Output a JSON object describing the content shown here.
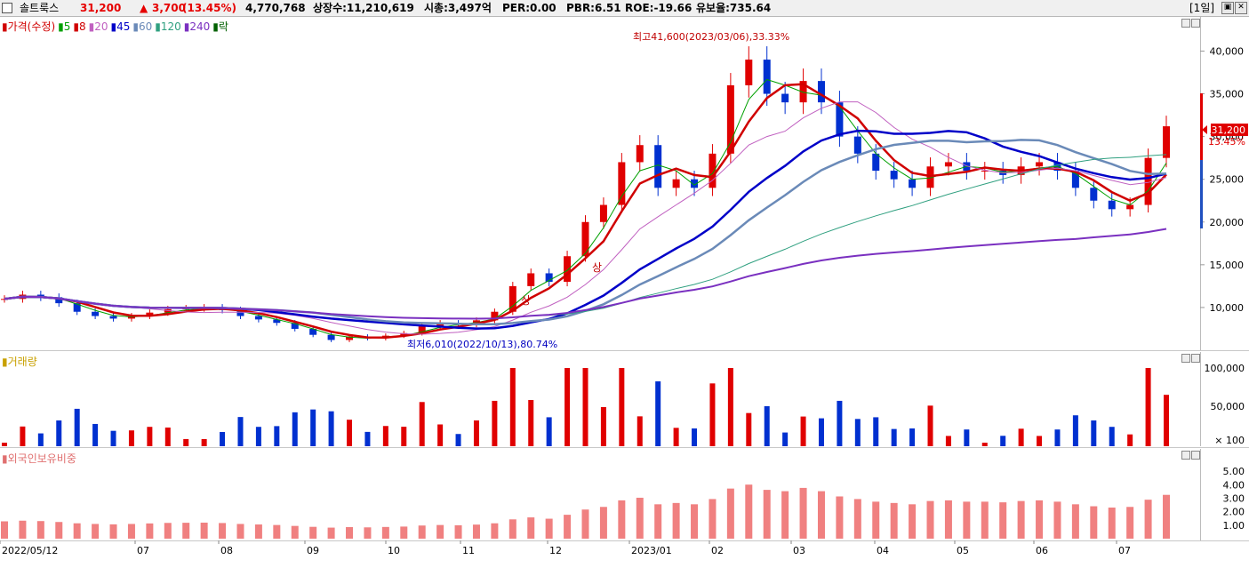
{
  "header": {
    "stock_name": "솔트룩스",
    "price": "31,200",
    "change_arrow": "▲",
    "change": "3,700",
    "change_pct": "(13.45%)",
    "volume": "4,770,768",
    "listed": "상장수:11,210,619",
    "market_cap": "시총:3,497억",
    "per": "PER:0.00",
    "pbr": "PBR:6.51",
    "roe": "ROE:-19.66",
    "reserve": "유보율:735.64",
    "period_button": "[1일]",
    "btn_restore": "▣",
    "btn_close": "✕"
  },
  "price_panel": {
    "legend": [
      {
        "label": "가격(수정)",
        "color": "#d00000"
      },
      {
        "label": "5",
        "color": "#00a000"
      },
      {
        "label": "8",
        "color": "#d00000"
      },
      {
        "label": "20",
        "color": "#c060c0"
      },
      {
        "label": "45",
        "color": "#0000c8"
      },
      {
        "label": "60",
        "color": "#6a8ab8"
      },
      {
        "label": "120",
        "color": "#30a080"
      },
      {
        "label": "240",
        "color": "#7a30c0"
      },
      {
        "label": "락",
        "color": "#006000"
      }
    ],
    "y_ticks": [
      "40,000",
      "35,000",
      "30,000",
      "25,000",
      "20,000",
      "15,000",
      "10,000"
    ],
    "high_annotation": "최고41,600(2023/03/06),33.33%",
    "low_annotation": "최저6,010(2022/10/13),80.74%",
    "limit_up_marks": [
      "상",
      "상"
    ],
    "price_tag": "31,200",
    "pct_tag": "13.45%"
  },
  "volume_panel": {
    "title": "거래량",
    "y_ticks": [
      "100,000",
      "50,000",
      "× 100"
    ]
  },
  "foreign_panel": {
    "title": "외국인보유비중",
    "y_ticks": [
      "5.00",
      "4.00",
      "3.00",
      "2.00",
      "1.00"
    ]
  },
  "x_axis": {
    "labels": [
      "2022/05/12",
      "07",
      "08",
      "09",
      "10",
      "11",
      "12",
      "2023/01",
      "02",
      "03",
      "04",
      "05",
      "06",
      "07"
    ]
  },
  "chart_data": {
    "type": "candlestick",
    "price_series_closes": [
      11000,
      11500,
      11200,
      10500,
      9500,
      9000,
      8700,
      9000,
      9400,
      9800,
      9900,
      10000,
      9700,
      9000,
      8600,
      8200,
      7500,
      6800,
      6200,
      6600,
      6400,
      6700,
      7000,
      7800,
      8200,
      8000,
      8500,
      9500,
      12500,
      14000,
      13000,
      16000,
      20000,
      22000,
      27000,
      29000,
      24000,
      25000,
      24000,
      28000,
      36000,
      39000,
      35000,
      34000,
      36500,
      34000,
      30000,
      28000,
      26000,
      25000,
      24000,
      26500,
      27000,
      26000,
      26000,
      25500,
      26500,
      27000,
      26000,
      24000,
      22500,
      21500,
      22000,
      27500,
      31200
    ],
    "y_range": [
      5000,
      44000
    ],
    "moving_averages": [
      "5",
      "8",
      "20",
      "45",
      "60",
      "120",
      "240"
    ],
    "volume_ticks": [
      100000,
      50000
    ],
    "foreign_ratio_ticks": [
      5,
      4,
      3,
      2,
      1
    ]
  }
}
